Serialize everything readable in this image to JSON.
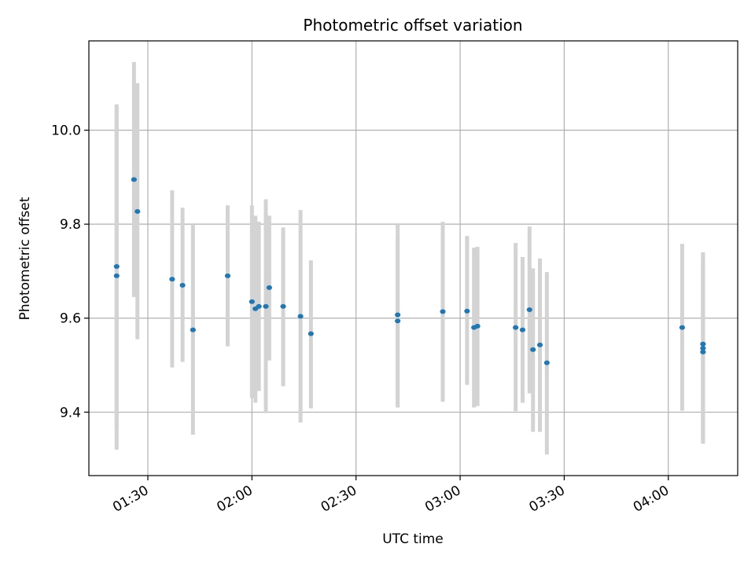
{
  "chart_data": {
    "type": "scatter",
    "title": "Photometric offset variation",
    "xlabel": "UTC time",
    "ylabel": "Photometric offset",
    "x_tick_labels": [
      "01:30",
      "02:00",
      "02:30",
      "03:00",
      "03:30",
      "04:00"
    ],
    "y_tick_labels": [
      "9.4",
      "9.6",
      "9.8",
      "10.0"
    ],
    "xlim": [
      "01:13",
      "04:20"
    ],
    "ylim": [
      9.265,
      10.19
    ],
    "grid": true,
    "colors": {
      "point": "#1f77b4",
      "errorbar": "#d3d3d3",
      "grid": "#b0b0b0"
    },
    "series": [
      {
        "points": [
          {
            "t": "01:21",
            "y": 9.69,
            "lo": 9.32,
            "hi": 10.055
          },
          {
            "t": "01:21",
            "y": 9.71,
            "lo": 9.365,
            "hi": 10.05
          },
          {
            "t": "01:26",
            "y": 9.895,
            "lo": 9.645,
            "hi": 10.145
          },
          {
            "t": "01:27",
            "y": 9.827,
            "lo": 9.555,
            "hi": 10.1
          },
          {
            "t": "01:37",
            "y": 9.683,
            "lo": 9.495,
            "hi": 9.872
          },
          {
            "t": "01:40",
            "y": 9.67,
            "lo": 9.507,
            "hi": 9.835
          },
          {
            "t": "01:43",
            "y": 9.575,
            "lo": 9.352,
            "hi": 9.8
          },
          {
            "t": "01:53",
            "y": 9.69,
            "lo": 9.54,
            "hi": 9.84
          },
          {
            "t": "02:00",
            "y": 9.635,
            "lo": 9.43,
            "hi": 9.84
          },
          {
            "t": "02:01",
            "y": 9.62,
            "lo": 9.42,
            "hi": 9.818
          },
          {
            "t": "02:02",
            "y": 9.625,
            "lo": 9.445,
            "hi": 9.805
          },
          {
            "t": "02:04",
            "y": 9.625,
            "lo": 9.398,
            "hi": 9.853
          },
          {
            "t": "02:05",
            "y": 9.665,
            "lo": 9.51,
            "hi": 9.818
          },
          {
            "t": "02:09",
            "y": 9.625,
            "lo": 9.455,
            "hi": 9.793
          },
          {
            "t": "02:14",
            "y": 9.604,
            "lo": 9.378,
            "hi": 9.83
          },
          {
            "t": "02:17",
            "y": 9.567,
            "lo": 9.408,
            "hi": 9.723
          },
          {
            "t": "02:42",
            "y": 9.594,
            "lo": 9.41,
            "hi": 9.775
          },
          {
            "t": "02:42",
            "y": 9.607,
            "lo": 9.413,
            "hi": 9.8
          },
          {
            "t": "02:55",
            "y": 9.614,
            "lo": 9.422,
            "hi": 9.805
          },
          {
            "t": "03:02",
            "y": 9.615,
            "lo": 9.458,
            "hi": 9.775
          },
          {
            "t": "03:04",
            "y": 9.58,
            "lo": 9.41,
            "hi": 9.75
          },
          {
            "t": "03:05",
            "y": 9.583,
            "lo": 9.413,
            "hi": 9.752
          },
          {
            "t": "03:16",
            "y": 9.58,
            "lo": 9.402,
            "hi": 9.76
          },
          {
            "t": "03:18",
            "y": 9.575,
            "lo": 9.42,
            "hi": 9.73
          },
          {
            "t": "03:20",
            "y": 9.618,
            "lo": 9.44,
            "hi": 9.795
          },
          {
            "t": "03:21",
            "y": 9.533,
            "lo": 9.358,
            "hi": 9.706
          },
          {
            "t": "03:23",
            "y": 9.543,
            "lo": 9.358,
            "hi": 9.727
          },
          {
            "t": "03:25",
            "y": 9.505,
            "lo": 9.31,
            "hi": 9.698
          },
          {
            "t": "04:04",
            "y": 9.58,
            "lo": 9.403,
            "hi": 9.758
          },
          {
            "t": "04:10",
            "y": 9.545,
            "lo": 9.338,
            "hi": 9.718
          },
          {
            "t": "04:10",
            "y": 9.528,
            "lo": 9.333,
            "hi": 9.74
          },
          {
            "t": "04:10",
            "y": 9.536,
            "lo": 9.333,
            "hi": 9.74
          }
        ]
      }
    ]
  }
}
